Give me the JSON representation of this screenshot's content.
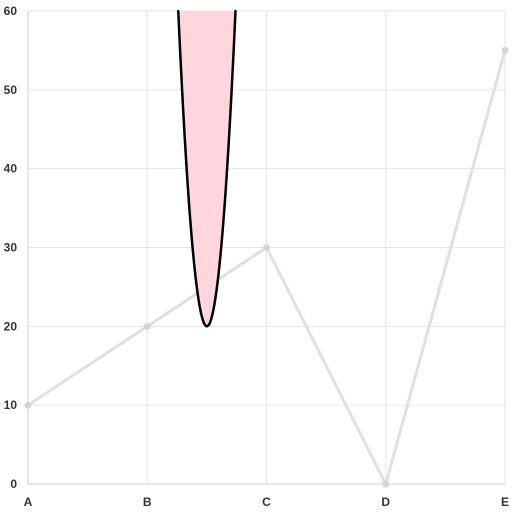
{
  "chart_data": {
    "type": "line",
    "categories": [
      "A",
      "B",
      "C",
      "D",
      "E"
    ],
    "series": [
      {
        "values": [
          10,
          20,
          30,
          0,
          55
        ],
        "color": "#e0e0e0"
      }
    ],
    "ylim": [
      0,
      60
    ],
    "yticks": [
      0,
      10,
      20,
      30,
      40,
      50,
      60
    ],
    "grid": true,
    "annotation": {
      "shape": "parabola",
      "x_center": 1.5,
      "vertex_y": 20,
      "x_at_top_left": 1.26,
      "x_at_top_right": 1.74,
      "y_top": 60,
      "fill": "#ffd6dd",
      "stroke": "#000000"
    }
  }
}
